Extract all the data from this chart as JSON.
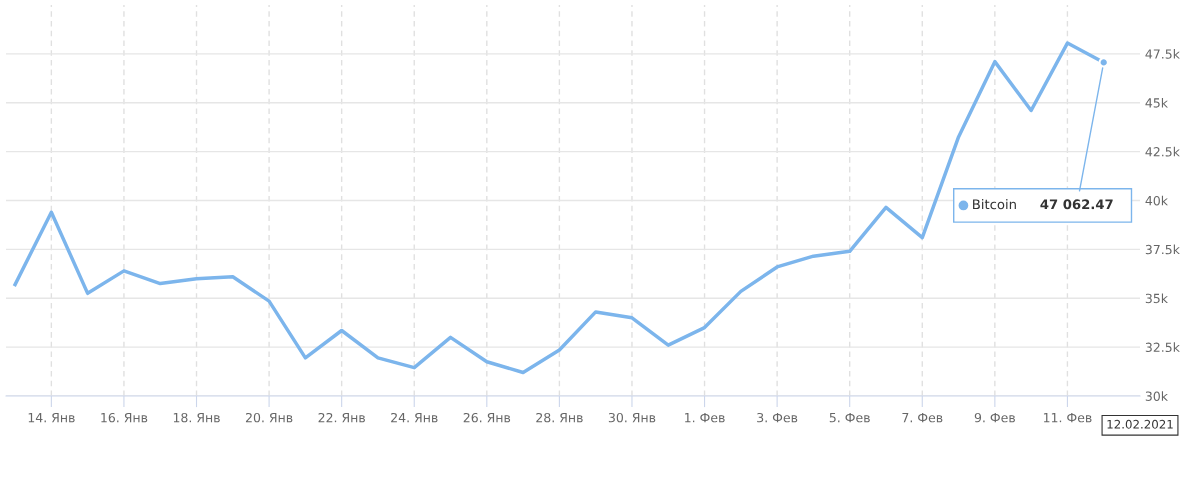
{
  "chart_data": {
    "type": "line",
    "x": [
      "2021-01-13",
      "2021-01-14",
      "2021-01-15",
      "2021-01-16",
      "2021-01-17",
      "2021-01-18",
      "2021-01-19",
      "2021-01-20",
      "2021-01-21",
      "2021-01-22",
      "2021-01-23",
      "2021-01-24",
      "2021-01-25",
      "2021-01-26",
      "2021-01-27",
      "2021-01-28",
      "2021-01-29",
      "2021-01-30",
      "2021-01-31",
      "2021-02-01",
      "2021-02-02",
      "2021-02-03",
      "2021-02-04",
      "2021-02-05",
      "2021-02-06",
      "2021-02-07",
      "2021-02-08",
      "2021-02-09",
      "2021-02-10",
      "2021-02-11",
      "2021-02-12"
    ],
    "series": [
      {
        "name": "Bitcoin",
        "color": "#7cb5ec",
        "values": [
          35700,
          39400,
          35250,
          36400,
          35750,
          36000,
          36100,
          34850,
          31950,
          33350,
          31950,
          31450,
          33000,
          31750,
          31200,
          32350,
          34300,
          34000,
          32600,
          33500,
          35350,
          36600,
          37150,
          37400,
          39650,
          38100,
          43250,
          47100,
          44600,
          48050,
          47062.47
        ]
      }
    ],
    "xlim": [
      "2021-01-12T18:00",
      "2021-02-13T00:00"
    ],
    "xticks": [
      {
        "value": "2021-01-14",
        "label": "14. Янв"
      },
      {
        "value": "2021-01-16",
        "label": "16. Янв"
      },
      {
        "value": "2021-01-18",
        "label": "18. Янв"
      },
      {
        "value": "2021-01-20",
        "label": "20. Янв"
      },
      {
        "value": "2021-01-22",
        "label": "22. Янв"
      },
      {
        "value": "2021-01-24",
        "label": "24. Янв"
      },
      {
        "value": "2021-01-26",
        "label": "26. Янв"
      },
      {
        "value": "2021-01-28",
        "label": "28. Янв"
      },
      {
        "value": "2021-01-30",
        "label": "30. Янв"
      },
      {
        "value": "2021-02-01",
        "label": "1. Фев"
      },
      {
        "value": "2021-02-03",
        "label": "3. Фев"
      },
      {
        "value": "2021-02-05",
        "label": "5. Фев"
      },
      {
        "value": "2021-02-07",
        "label": "7. Фев"
      },
      {
        "value": "2021-02-09",
        "label": "9. Фев"
      },
      {
        "value": "2021-02-11",
        "label": "11. Фев"
      }
    ],
    "ylim": [
      30000,
      50000
    ],
    "yticks": [
      {
        "value": 30000,
        "label": "30k"
      },
      {
        "value": 32500,
        "label": "32.5k"
      },
      {
        "value": 35000,
        "label": "35k"
      },
      {
        "value": 37500,
        "label": "37.5k"
      },
      {
        "value": 40000,
        "label": "40k"
      },
      {
        "value": 42500,
        "label": "42.5k"
      },
      {
        "value": 45000,
        "label": "45k"
      },
      {
        "value": 47500,
        "label": "47.5k"
      }
    ],
    "grid": true,
    "legend": "right",
    "marker": "none",
    "line_style": "solid",
    "annotations": [
      {
        "text": "47 062.47",
        "x": "2021-02-12",
        "y": 47062.47
      },
      "12.02.2021"
    ]
  }
}
